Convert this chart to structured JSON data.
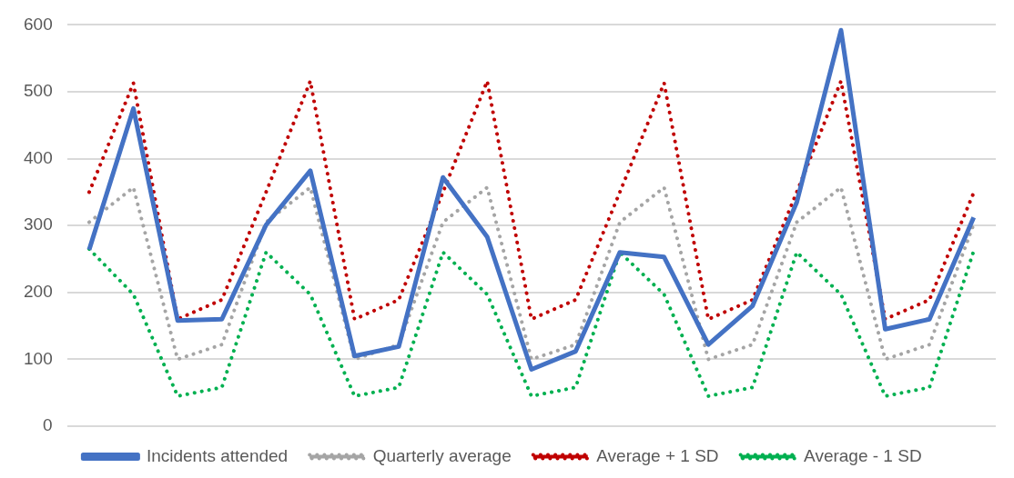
{
  "chart_data": {
    "type": "line",
    "categories": [
      null,
      null,
      null,
      null,
      null,
      null,
      null,
      null,
      null,
      null,
      null,
      null,
      null,
      null,
      null,
      null,
      null,
      null,
      null,
      null,
      null
    ],
    "series": [
      {
        "name": "Incidents attended",
        "color": "#4472c4",
        "line_style": "solid",
        "values": [
          264,
          475,
          158,
          160,
          301,
          382,
          105,
          119,
          372,
          283,
          85,
          112,
          260,
          253,
          122,
          180,
          335,
          592,
          145,
          160,
          312
        ]
      },
      {
        "name": "Quarterly average",
        "color": "#a5a5a5",
        "line_style": "dotted",
        "values": [
          305,
          357,
          100,
          122,
          305,
          357,
          100,
          122,
          305,
          357,
          100,
          122,
          305,
          357,
          100,
          122,
          305,
          357,
          100,
          122,
          302
        ]
      },
      {
        "name": "Average + 1 SD",
        "color": "#c00000",
        "line_style": "dotted",
        "values": [
          350,
          513,
          160,
          189,
          350,
          516,
          160,
          189,
          350,
          516,
          160,
          189,
          350,
          513,
          160,
          189,
          350,
          516,
          160,
          189,
          349
        ]
      },
      {
        "name": "Average - 1 SD",
        "color": "#00b050",
        "line_style": "dotted",
        "values": [
          265,
          197,
          45,
          58,
          260,
          197,
          45,
          58,
          260,
          197,
          45,
          58,
          260,
          197,
          45,
          58,
          260,
          197,
          45,
          58,
          262
        ]
      }
    ],
    "ylim": [
      0,
      600
    ],
    "yticks": [
      0,
      100,
      200,
      300,
      400,
      500,
      600
    ],
    "grid": "y",
    "legend": "bottom",
    "marker": "none",
    "tick_labels": "y"
  }
}
